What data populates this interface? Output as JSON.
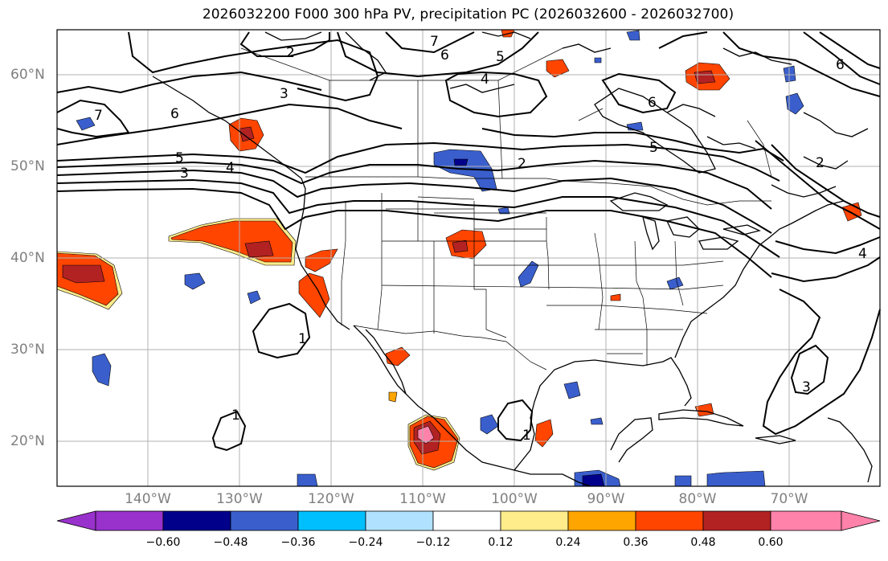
{
  "title": "2026032200 F000 300 hPa PV, precipitation PC (2026032600 - 2026032700)",
  "lat_ticks": [
    "60°N",
    "50°N",
    "40°N",
    "30°N",
    "20°N"
  ],
  "lon_ticks": [
    "140°W",
    "130°W",
    "120°W",
    "110°W",
    "100°W",
    "90°W",
    "80°W",
    "70°W"
  ],
  "colorbar": {
    "ticks": [
      "−0.60",
      "−0.48",
      "−0.36",
      "−0.24",
      "−0.12",
      "0.12",
      "0.24",
      "0.36",
      "0.48",
      "0.60"
    ],
    "colors": [
      "#9932cc",
      "#00008b",
      "#3a5fcd",
      "#00bfff",
      "#b0e2ff",
      "#ffffff",
      "#ffec8b",
      "#ffa500",
      "#ff4500",
      "#b22222",
      "#ff82ab"
    ]
  },
  "contour_labels": {
    "c2a": "2",
    "c3a": "3",
    "c7": "7",
    "c6a": "6",
    "c5a": "5",
    "c3b": "3",
    "c4a": "4",
    "c6b": "6",
    "c5b": "5",
    "c4b": "4",
    "c7b": "7",
    "c6c": "6",
    "c2b": "2",
    "c5c": "5",
    "c6d": "6",
    "c2c": "2",
    "c4c": "4",
    "c3c": "3",
    "c1a": "1",
    "c1b": "1",
    "c1c": "1"
  }
}
